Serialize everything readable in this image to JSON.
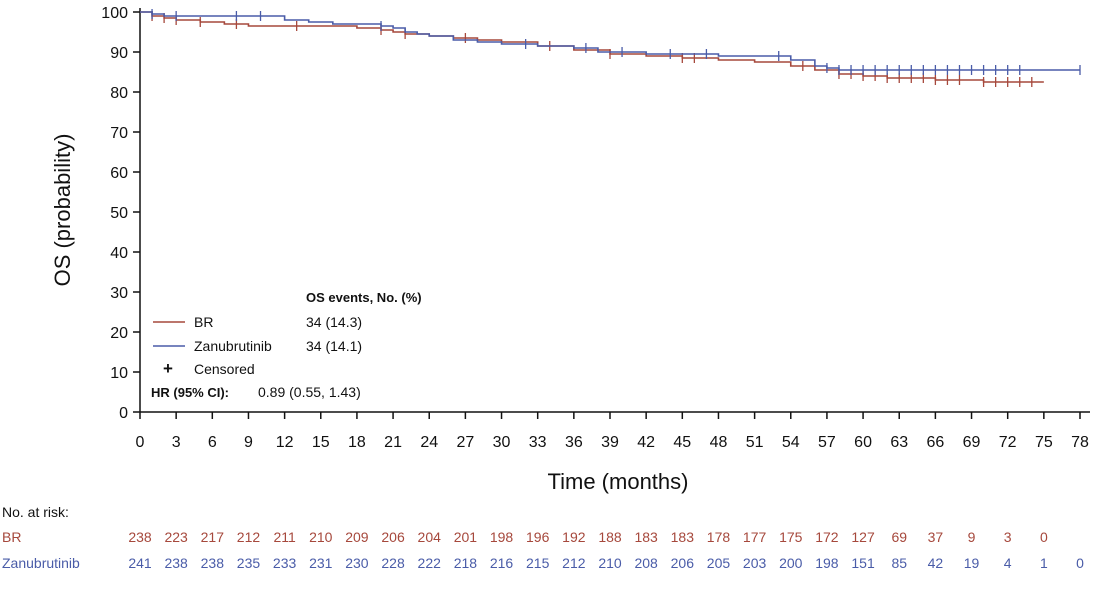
{
  "colors": {
    "br": "#a6483c",
    "zanubrutinib": "#4a5ca8",
    "axis": "#111111"
  },
  "chart_data": {
    "type": "line",
    "title": "",
    "xlabel": "Time (months)",
    "ylabel": "OS (probability)",
    "xlim": [
      0,
      78
    ],
    "ylim": [
      0,
      100
    ],
    "xticks": [
      "0",
      "3",
      "6",
      "9",
      "12",
      "15",
      "18",
      "21",
      "24",
      "27",
      "30",
      "33",
      "36",
      "39",
      "42",
      "45",
      "48",
      "51",
      "54",
      "57",
      "60",
      "63",
      "66",
      "69",
      "72",
      "75",
      "78"
    ],
    "yticks": [
      "0",
      "10",
      "20",
      "30",
      "40",
      "50",
      "60",
      "70",
      "80",
      "90",
      "100"
    ],
    "series": [
      {
        "name": "BR",
        "events_text": "34 (14.3)",
        "x": [
          0,
          1,
          2,
          3,
          5,
          7,
          9,
          12,
          15,
          18,
          20,
          21,
          22,
          23,
          24,
          26,
          28,
          30,
          33,
          36,
          39,
          42,
          45,
          48,
          51,
          54,
          56,
          58,
          60,
          62,
          66,
          70,
          75
        ],
        "y": [
          100,
          99,
          98.5,
          98,
          97.5,
          97,
          96.5,
          96.5,
          96.5,
          96,
          95.5,
          95,
          94.5,
          94.5,
          94,
          93.5,
          93,
          92.5,
          91.5,
          90.5,
          89.5,
          89,
          88.5,
          88,
          87.5,
          86.5,
          85.5,
          84.5,
          84,
          83.5,
          83,
          82.5,
          82.5
        ],
        "censored_x": [
          1,
          2,
          3,
          5,
          8,
          13,
          20,
          22,
          27,
          34,
          39,
          45,
          46,
          55,
          58,
          59,
          60,
          61,
          62,
          63,
          64,
          65,
          66,
          67,
          68,
          70,
          71,
          72,
          73,
          74
        ]
      },
      {
        "name": "Zanubrutinib",
        "events_text": "34 (14.1)",
        "x": [
          0,
          1,
          2,
          4,
          6,
          8,
          10,
          12,
          14,
          16,
          18,
          20,
          21,
          22,
          23,
          24,
          26,
          28,
          30,
          33,
          36,
          38,
          42,
          45,
          48,
          51,
          54,
          56,
          57,
          58,
          60,
          62,
          66,
          70,
          75,
          78
        ],
        "y": [
          100,
          99.5,
          99,
          99,
          99,
          99,
          99,
          98,
          97.5,
          97,
          97,
          96.5,
          96,
          95,
          94.5,
          94,
          93,
          92.5,
          92,
          91.5,
          91,
          90,
          89.5,
          89.5,
          89,
          89,
          88,
          86.5,
          86,
          85.5,
          85.5,
          85.5,
          85.5,
          85.5,
          85.5,
          85.5
        ],
        "censored_x": [
          1,
          3,
          8,
          10,
          20,
          32,
          37,
          40,
          44,
          47,
          53,
          57,
          58,
          59,
          60,
          61,
          62,
          63,
          64,
          65,
          66,
          67,
          68,
          69,
          70,
          71,
          72,
          73,
          78
        ]
      }
    ],
    "legend": {
      "header": "OS events, No. (%)",
      "censored_label": "Censored",
      "censored_symbol": "+",
      "hr_label": "HR (95% CI):",
      "hr_value": "0.89 (0.55, 1.43)"
    },
    "risk_table": {
      "title": "No. at risk:",
      "rows": [
        {
          "name": "BR",
          "values": [
            "238",
            "223",
            "217",
            "212",
            "211",
            "210",
            "209",
            "206",
            "204",
            "201",
            "198",
            "196",
            "192",
            "188",
            "183",
            "183",
            "178",
            "177",
            "175",
            "172",
            "127",
            "69",
            "37",
            "9",
            "3",
            "0"
          ]
        },
        {
          "name": "Zanubrutinib",
          "values": [
            "241",
            "238",
            "238",
            "235",
            "233",
            "231",
            "230",
            "228",
            "222",
            "218",
            "216",
            "215",
            "212",
            "210",
            "208",
            "206",
            "205",
            "203",
            "200",
            "198",
            "151",
            "85",
            "42",
            "19",
            "4",
            "1",
            "0"
          ]
        }
      ]
    }
  }
}
